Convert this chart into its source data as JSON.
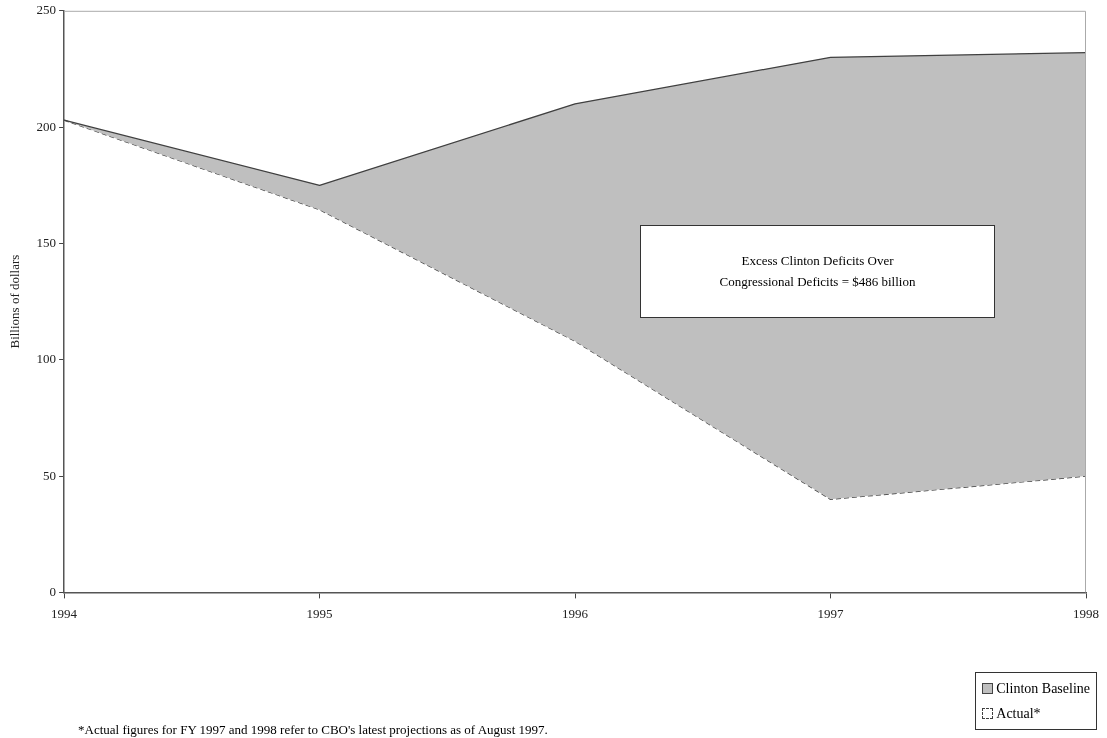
{
  "chart_data": {
    "type": "area",
    "ylabel": "Billions of dollars",
    "x": [
      1994,
      1995,
      1996,
      1997,
      1998
    ],
    "series": [
      {
        "name": "Clinton Baseline",
        "type": "area",
        "color": "#bfbfbf",
        "values": [
          203,
          175,
          210,
          230,
          232
        ]
      },
      {
        "name": "Actual*",
        "type": "line",
        "color": "#404040",
        "line_style": "dashed",
        "values": [
          203,
          164.5,
          108,
          40,
          50
        ]
      }
    ],
    "xlim": [
      1994,
      1998
    ],
    "xticks": [
      1994,
      1995,
      1996,
      1997,
      1998
    ],
    "ylim": [
      0,
      250
    ],
    "yticks": [
      0,
      50,
      100,
      150,
      200,
      250
    ],
    "grid": false,
    "legend": "bottom right",
    "marker": "none",
    "annotations": [
      "Excess Clinton Deficits Over Congressional Deficits = $486 billion",
      "*Actual figures for FY 1997 and 1998 refer to CBO's latest projections as of August 1997."
    ]
  }
}
